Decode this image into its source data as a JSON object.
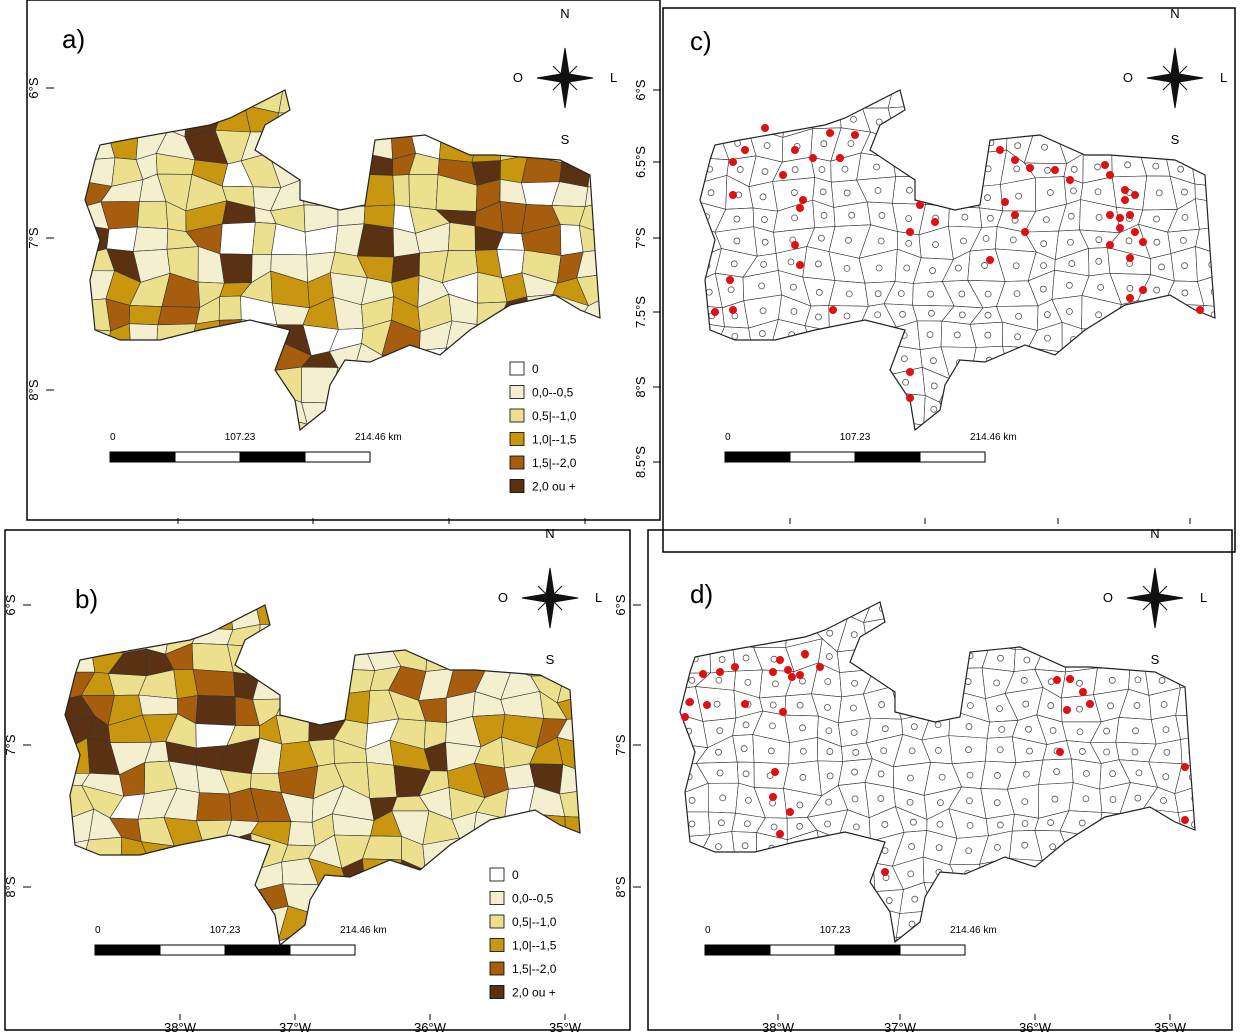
{
  "panels": [
    {
      "label": "a)",
      "compass": {
        "north": "N",
        "south": "S",
        "west": "O",
        "east": "L"
      },
      "scale_labels": [
        "0",
        "107.23",
        "214.46 km"
      ],
      "y_ticks": [
        "6°S",
        "7°S",
        "8°S"
      ],
      "legend": [
        {
          "label": "0",
          "color": "#ffffff"
        },
        {
          "label": "0,0--0,5",
          "color": "#f3efcf"
        },
        {
          "label": "0,5|--1,0",
          "color": "#ece08f"
        },
        {
          "label": "1,0|--1,5",
          "color": "#c9960f"
        },
        {
          "label": "1,5|--2,0",
          "color": "#a65e0e"
        },
        {
          "label": "2,0 ou +",
          "color": "#5a3213"
        }
      ]
    },
    {
      "label": "c)",
      "compass": {
        "north": "N",
        "south": "S",
        "west": "O",
        "east": "L"
      },
      "scale_labels": [
        "0",
        "107.23",
        "214.46 km"
      ],
      "y_ticks": [
        "6°S",
        "6.5°S",
        "7°S",
        "7.5°S",
        "8°S",
        "8.5°S"
      ]
    },
    {
      "label": "b)",
      "compass": {
        "north": "N",
        "south": "S",
        "west": "O",
        "east": "L"
      },
      "scale_labels": [
        "0",
        "107.23",
        "214.46 km"
      ],
      "y_ticks": [
        "6°S",
        "7°S",
        "8°S"
      ],
      "x_ticks": [
        "38°W",
        "37°W",
        "36°W",
        "35°W"
      ],
      "legend": [
        {
          "label": "0",
          "color": "#ffffff"
        },
        {
          "label": "0,0--0,5",
          "color": "#f3efcf"
        },
        {
          "label": "0,5|--1,0",
          "color": "#ece08f"
        },
        {
          "label": "1,0|--1,5",
          "color": "#c9960f"
        },
        {
          "label": "1,5|--2,0",
          "color": "#a65e0e"
        },
        {
          "label": "2,0 ou +",
          "color": "#5a3213"
        }
      ]
    },
    {
      "label": "d)",
      "compass": {
        "north": "N",
        "south": "S",
        "west": "O",
        "east": "L"
      },
      "scale_labels": [
        "0",
        "107.23",
        "214.46 km"
      ],
      "y_ticks": [
        "6°S",
        "7°S",
        "8°S"
      ],
      "x_ticks": [
        "38°W",
        "37°W",
        "36°W",
        "35°W"
      ]
    }
  ]
}
